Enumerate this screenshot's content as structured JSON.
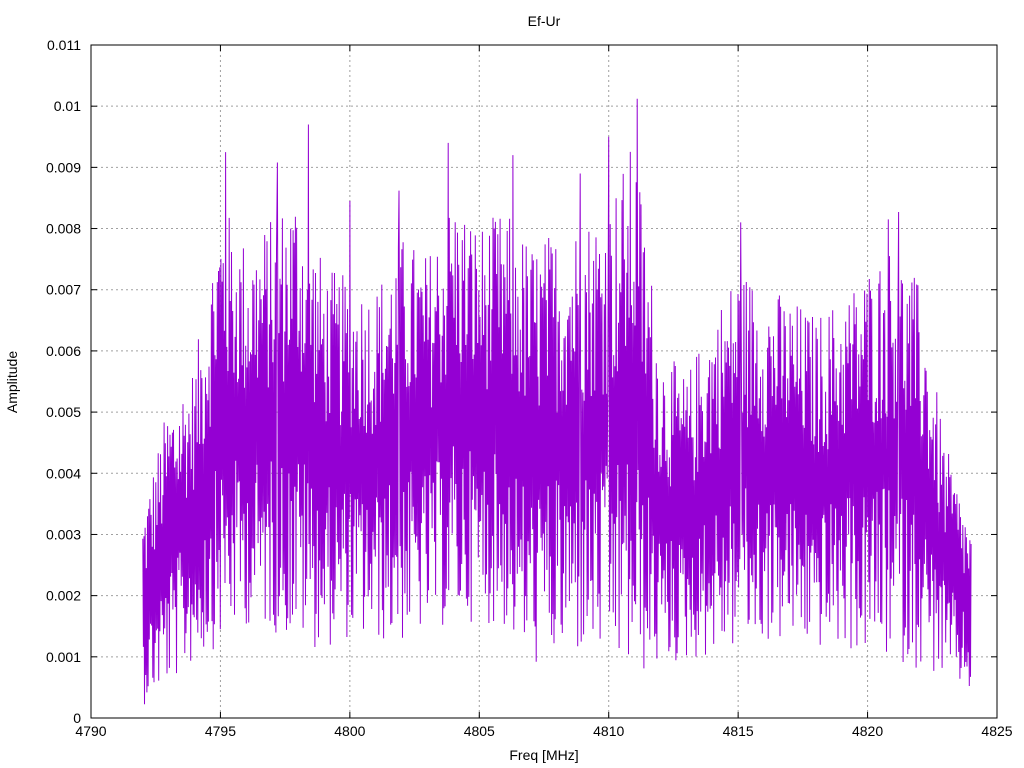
{
  "chart_data": {
    "type": "line",
    "title": "Ef-Ur",
    "xlabel": "Freq [MHz]",
    "ylabel": "Amplitude",
    "xlim": [
      4790,
      4825
    ],
    "ylim": [
      0,
      0.011
    ],
    "xticks": [
      "4790",
      "4795",
      "4800",
      "4805",
      "4810",
      "4815",
      "4820",
      "4825"
    ],
    "yticks": [
      "0",
      "0.001",
      "0.002",
      "0.003",
      "0.004",
      "0.005",
      "0.006",
      "0.007",
      "0.008",
      "0.009",
      "0.01",
      "0.011"
    ],
    "grid": true,
    "series": [
      {
        "color": "#9400d3",
        "x_start": 4792.0,
        "x_end": 4824.0,
        "envelope_x": [
          4792.0,
          4793.0,
          4794.0,
          4795.0,
          4796.0,
          4797.0,
          4798.0,
          4799.0,
          4800.0,
          4801.0,
          4802.0,
          4803.0,
          4804.0,
          4805.0,
          4806.0,
          4807.0,
          4808.0,
          4809.0,
          4810.0,
          4811.0,
          4812.0,
          4813.0,
          4814.0,
          4815.0,
          4816.0,
          4817.0,
          4818.0,
          4819.0,
          4820.0,
          4821.0,
          4822.0,
          4823.0,
          4824.0
        ],
        "envelope_min": [
          0.0002,
          0.0005,
          0.0009,
          0.0012,
          0.0015,
          0.0014,
          0.0012,
          0.0011,
          0.0013,
          0.0012,
          0.0012,
          0.0014,
          0.0015,
          0.0016,
          0.0014,
          0.0008,
          0.0009,
          0.001,
          0.0009,
          0.0006,
          0.0008,
          0.0009,
          0.001,
          0.0011,
          0.0012,
          0.0012,
          0.0011,
          0.0011,
          0.001,
          0.0009,
          0.0008,
          0.0006,
          0.0004
        ],
        "envelope_max": [
          0.0034,
          0.0052,
          0.0058,
          0.0085,
          0.0078,
          0.0082,
          0.0088,
          0.0074,
          0.0072,
          0.0071,
          0.0079,
          0.0076,
          0.0086,
          0.0081,
          0.0083,
          0.0078,
          0.008,
          0.0082,
          0.0085,
          0.0095,
          0.0061,
          0.0056,
          0.0066,
          0.0074,
          0.0071,
          0.0069,
          0.0066,
          0.0069,
          0.0074,
          0.0078,
          0.0071,
          0.0045,
          0.0031
        ],
        "peaks": [
          {
            "x": 4795.2,
            "y": 0.00925
          },
          {
            "x": 4797.2,
            "y": 0.00908
          },
          {
            "x": 4798.4,
            "y": 0.0097
          },
          {
            "x": 4800.0,
            "y": 0.00845
          },
          {
            "x": 4801.9,
            "y": 0.00862
          },
          {
            "x": 4803.8,
            "y": 0.0094
          },
          {
            "x": 4806.3,
            "y": 0.0092
          },
          {
            "x": 4808.9,
            "y": 0.0089
          },
          {
            "x": 4810.0,
            "y": 0.0095
          },
          {
            "x": 4811.1,
            "y": 0.01012
          },
          {
            "x": 4815.1,
            "y": 0.0081
          },
          {
            "x": 4820.8,
            "y": 0.00815
          },
          {
            "x": 4821.2,
            "y": 0.00827
          }
        ]
      }
    ]
  }
}
